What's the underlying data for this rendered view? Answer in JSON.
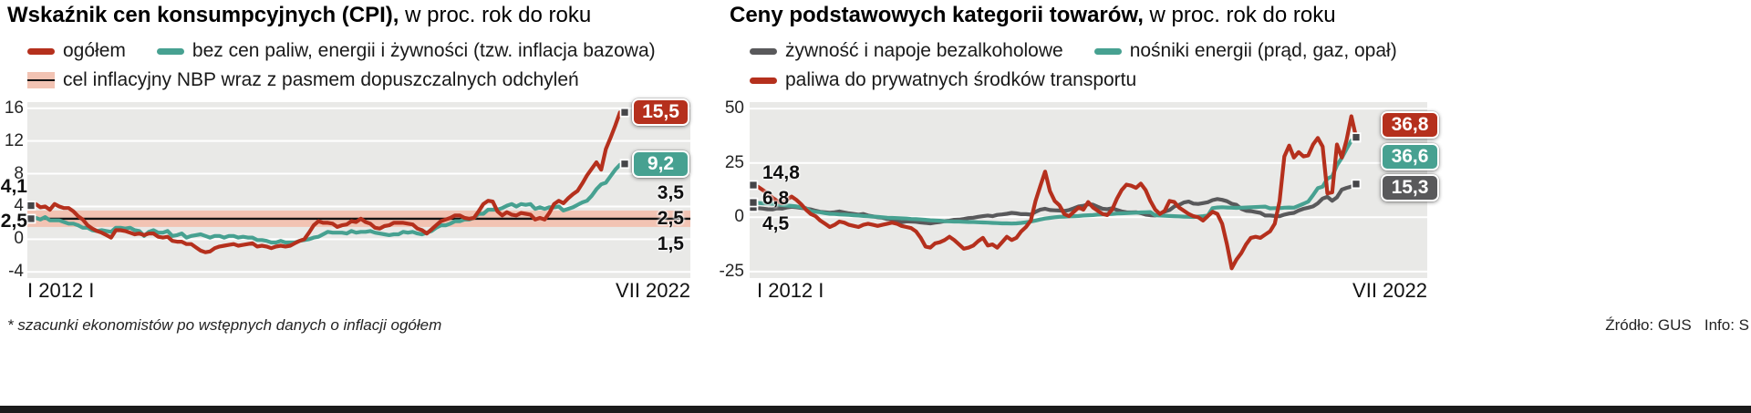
{
  "footnote": "* szacunki ekonomistów po wstępnych danych o inflacji ogółem",
  "source": "Źródło: GUS   Info: S",
  "chart_data": [
    {
      "type": "line",
      "title": "Wskaźnik cen konsumpcyjnych (CPI),",
      "subtitle": " w proc. rok do roku",
      "x_start_label": "I 2012 I",
      "x_end_label": "VII 2022",
      "x_range": "I 2012 - VII 2022, dane miesięczne rok do roku",
      "ylim": [
        -4,
        16
      ],
      "yticks": [
        16,
        12,
        8,
        4,
        0,
        -4
      ],
      "grid": true,
      "plot_bg": "#e9e9e7",
      "grid_color": "#ffffff",
      "legend_position": "top",
      "target_band": {
        "high": 3.5,
        "mid": 2.5,
        "low": 1.5,
        "label_high": "3,5",
        "label_mid": "2,5",
        "label_low": "1,5",
        "band_color": "#f2c3b3",
        "line_color": "#141414"
      },
      "legend": [
        {
          "label": "ogółem",
          "color": "#b5301d",
          "kind": "line"
        },
        {
          "label": "bez cen paliw, energii i żywności (tzw. inflacja bazowa)",
          "color": "#47a191",
          "kind": "line"
        },
        {
          "label": "cel inflacyjny NBP wraz z pasmem dopuszczalnych odchyleń",
          "color": "#f2c3b3",
          "kind": "band"
        }
      ],
      "series": [
        {
          "name": "ogółem",
          "color": "#b5301d",
          "start_label": "4,1",
          "end_label": "15,5",
          "values": [
            4.1,
            4.3,
            3.9,
            4.0,
            3.6,
            4.3,
            4.0,
            3.8,
            3.8,
            3.4,
            2.8,
            2.4,
            1.7,
            1.3,
            1.0,
            0.8,
            0.5,
            0.2,
            1.1,
            1.1,
            1.0,
            0.8,
            0.6,
            0.7,
            0.5,
            0.7,
            0.7,
            0.3,
            0.2,
            0.3,
            -0.2,
            -0.3,
            -0.3,
            -0.6,
            -0.6,
            -1.0,
            -1.4,
            -1.6,
            -1.5,
            -1.1,
            -0.9,
            -0.8,
            -0.7,
            -0.6,
            -0.8,
            -0.7,
            -0.6,
            -0.5,
            -0.9,
            -0.8,
            -0.9,
            -1.1,
            -0.9,
            -0.8,
            -0.9,
            -0.8,
            -0.5,
            -0.2,
            0.0,
            0.8,
            1.7,
            2.2,
            2.0,
            2.0,
            1.9,
            1.5,
            1.7,
            1.8,
            2.2,
            2.1,
            2.5,
            2.1,
            1.9,
            1.4,
            1.3,
            1.6,
            1.7,
            2.0,
            2.0,
            2.0,
            1.9,
            1.8,
            1.3,
            1.1,
            0.7,
            1.2,
            1.7,
            2.2,
            2.4,
            2.6,
            2.9,
            2.9,
            2.6,
            2.5,
            2.6,
            3.4,
            4.3,
            4.7,
            4.6,
            3.4,
            2.9,
            3.3,
            3.0,
            2.9,
            3.2,
            3.1,
            3.0,
            2.4,
            2.6,
            2.4,
            3.2,
            4.3,
            4.7,
            4.4,
            5.0,
            5.5,
            5.9,
            6.8,
            7.8,
            8.6,
            9.4,
            8.5,
            11.0,
            12.4,
            13.9,
            15.5,
            15.5
          ]
        },
        {
          "name": "bez cen paliw, energii i żywności (tzw. inflacja bazowa)",
          "color": "#47a191",
          "start_label": "2,5",
          "end_label": "9,2",
          "values": [
            2.5,
            2.6,
            2.4,
            2.7,
            2.3,
            2.3,
            2.3,
            2.1,
            1.9,
            1.9,
            1.7,
            1.4,
            1.4,
            1.1,
            1.0,
            1.1,
            1.0,
            0.9,
            1.4,
            1.4,
            1.3,
            1.4,
            1.1,
            1.0,
            0.4,
            0.9,
            1.1,
            0.8,
            0.8,
            1.0,
            0.4,
            0.5,
            0.7,
            0.2,
            0.4,
            0.5,
            0.6,
            0.4,
            0.2,
            0.4,
            0.4,
            0.2,
            0.4,
            0.4,
            0.2,
            0.3,
            0.2,
            0.2,
            -0.1,
            -0.1,
            -0.2,
            -0.4,
            -0.4,
            -0.2,
            -0.4,
            -0.4,
            -0.4,
            -0.2,
            -0.1,
            0.0,
            0.2,
            0.3,
            0.6,
            0.9,
            0.8,
            0.8,
            0.8,
            0.7,
            1.0,
            0.8,
            0.9,
            0.9,
            1.0,
            0.8,
            0.7,
            0.6,
            0.5,
            0.6,
            0.6,
            0.9,
            0.8,
            0.9,
            0.7,
            0.6,
            0.8,
            1.0,
            1.4,
            1.7,
            1.7,
            1.9,
            2.2,
            2.2,
            2.4,
            2.4,
            2.6,
            3.1,
            3.1,
            3.6,
            3.6,
            3.6,
            3.8,
            4.1,
            4.3,
            4.0,
            4.3,
            4.2,
            4.3,
            3.7,
            3.9,
            3.7,
            3.9,
            3.9,
            4.0,
            3.5,
            3.7,
            3.9,
            4.2,
            4.5,
            4.7,
            5.3,
            6.1,
            6.7,
            6.9,
            7.7,
            8.5,
            9.1,
            9.2
          ]
        }
      ]
    },
    {
      "type": "line",
      "title": "Ceny podstawowych kategorii towarów,",
      "subtitle": " w proc. rok do roku",
      "x_start_label": "I 2012 I",
      "x_end_label": "VII 2022",
      "x_range": "I 2012 - VII 2022, dane miesięczne rok do roku",
      "ylim": [
        -25,
        50
      ],
      "yticks": [
        50,
        25,
        0,
        -25
      ],
      "grid": true,
      "plot_bg": "#e9e9e7",
      "grid_color": "#ffffff",
      "legend_position": "top",
      "legend": [
        {
          "label": "żywność i napoje bezalkoholowe",
          "color": "#59595b",
          "kind": "line"
        },
        {
          "label": "nośniki energii (prąd, gaz, opał)",
          "color": "#47a191",
          "kind": "line"
        },
        {
          "label": "paliwa do prywatnych środków transportu",
          "color": "#b5301d",
          "kind": "line"
        }
      ],
      "series": [
        {
          "name": "żywność i napoje bezalkoholowe",
          "color": "#59595b",
          "start_label": "4,5",
          "end_label": "15,3",
          "values": [
            4.5,
            4.2,
            4.0,
            3.7,
            3.6,
            4.1,
            4.0,
            4.5,
            4.8,
            4.6,
            4.3,
            4.0,
            3.6,
            3.0,
            2.5,
            2.3,
            2.1,
            2.3,
            2.7,
            2.2,
            1.8,
            1.5,
            1.2,
            1.5,
            0.8,
            0.4,
            0.0,
            -0.2,
            -0.8,
            -0.9,
            -1.8,
            -2.3,
            -1.9,
            -2.0,
            -2.1,
            -2.4,
            -2.6,
            -2.8,
            -2.5,
            -2.2,
            -1.8,
            -1.6,
            -1.2,
            -1.1,
            -0.8,
            -0.4,
            -0.2,
            0.2,
            0.5,
            0.8,
            0.5,
            1.1,
            1.3,
            1.6,
            2.0,
            1.8,
            1.4,
            1.4,
            1.2,
            2.5,
            3.5,
            3.9,
            3.3,
            3.2,
            3.1,
            2.9,
            3.3,
            4.1,
            5.0,
            5.3,
            6.0,
            5.8,
            4.8,
            3.9,
            3.7,
            4.1,
            3.4,
            2.7,
            2.3,
            2.2,
            2.3,
            1.9,
            1.2,
            0.9,
            0.8,
            1.7,
            2.6,
            3.3,
            5.0,
            5.7,
            6.8,
            7.2,
            6.3,
            6.1,
            6.5,
            6.9,
            7.9,
            8.4,
            8.0,
            7.4,
            6.2,
            5.7,
            3.9,
            3.0,
            2.8,
            2.4,
            2.0,
            0.8,
            0.8,
            0.6,
            0.5,
            1.2,
            1.7,
            2.0,
            3.1,
            3.9,
            4.4,
            5.0,
            6.4,
            8.6,
            9.4,
            7.6,
            9.2,
            12.7,
            13.5,
            14.1,
            15.3
          ]
        },
        {
          "name": "nośniki energii (prąd, gaz, opał)",
          "color": "#47a191",
          "start_label": "6,8",
          "end_label": "36,6",
          "values": [
            6.8,
            6.6,
            6.4,
            6.3,
            6.2,
            5.9,
            5.6,
            5.4,
            5.2,
            5.0,
            4.6,
            4.2,
            2.8,
            2.5,
            2.3,
            1.9,
            1.6,
            1.5,
            1.3,
            1.2,
            1.1,
            0.9,
            0.8,
            0.6,
            0.5,
            0.3,
            0.2,
            0.0,
            -0.2,
            -0.3,
            -0.4,
            -0.5,
            -0.6,
            -0.8,
            -0.9,
            -1.0,
            -1.2,
            -1.4,
            -1.5,
            -1.6,
            -1.8,
            -1.9,
            -2.0,
            -2.0,
            -2.1,
            -2.2,
            -2.2,
            -2.3,
            -2.4,
            -2.5,
            -2.6,
            -2.7,
            -2.8,
            -2.8,
            -2.9,
            -2.8,
            -2.6,
            -2.3,
            -2.0,
            -1.5,
            -1.0,
            -0.6,
            -0.3,
            0.0,
            0.2,
            0.3,
            0.4,
            0.5,
            0.6,
            0.8,
            0.9,
            1.0,
            1.2,
            1.3,
            1.4,
            1.5,
            1.7,
            1.8,
            1.9,
            2.0,
            2.1,
            2.2,
            2.3,
            2.4,
            0.9,
            0.8,
            0.7,
            0.6,
            0.5,
            0.4,
            0.3,
            0.2,
            0.1,
            0.3,
            0.5,
            0.8,
            4.2,
            4.5,
            4.6,
            4.5,
            4.4,
            4.3,
            4.4,
            4.5,
            4.6,
            4.7,
            4.8,
            4.9,
            4.1,
            4.2,
            4.2,
            4.4,
            4.5,
            4.4,
            5.3,
            6.2,
            7.2,
            10.2,
            13.4,
            14.1,
            17.8,
            18.8,
            23.9,
            27.3,
            31.4,
            35.3,
            36.6
          ]
        },
        {
          "name": "paliwa do prywatnych środków transportu",
          "color": "#b5301d",
          "start_label": "14,8",
          "end_label": "36,8",
          "values": [
            14.8,
            14.0,
            12.5,
            11.0,
            9.0,
            7.5,
            6.5,
            8.0,
            9.5,
            8.0,
            6.0,
            3.5,
            1.5,
            0.5,
            -1.5,
            -3.0,
            -4.5,
            -3.5,
            -2.0,
            -2.5,
            -3.5,
            -4.0,
            -4.5,
            -3.5,
            -3.0,
            -3.5,
            -4.0,
            -3.5,
            -3.0,
            -2.5,
            -3.0,
            -4.0,
            -4.5,
            -5.0,
            -6.5,
            -9.5,
            -13.5,
            -14.0,
            -12.0,
            -11.5,
            -10.5,
            -9.0,
            -10.5,
            -12.5,
            -14.5,
            -14.0,
            -13.0,
            -11.0,
            -9.5,
            -13.0,
            -12.5,
            -14.0,
            -11.5,
            -9.0,
            -10.5,
            -9.5,
            -6.5,
            -4.5,
            -1.5,
            7.5,
            14.5,
            21.0,
            12.0,
            7.5,
            5.5,
            1.5,
            0.5,
            2.5,
            4.5,
            3.5,
            7.0,
            4.5,
            3.0,
            1.5,
            1.0,
            3.5,
            8.5,
            12.5,
            15.0,
            14.5,
            13.5,
            15.5,
            12.5,
            7.5,
            3.5,
            1.5,
            3.0,
            7.5,
            7.0,
            4.5,
            3.0,
            1.5,
            0.5,
            0.0,
            -1.5,
            0.5,
            2.5,
            1.5,
            -3.0,
            -12.5,
            -23.5,
            -19.5,
            -16.5,
            -12.5,
            -9.5,
            -9.0,
            -9.5,
            -8.0,
            -6.5,
            -3.0,
            7.5,
            28.0,
            33.0,
            27.5,
            30.0,
            28.0,
            28.5,
            33.5,
            36.5,
            32.5,
            11.0,
            11.5,
            33.5,
            27.5,
            35.5,
            46.5,
            36.8
          ]
        }
      ]
    }
  ]
}
